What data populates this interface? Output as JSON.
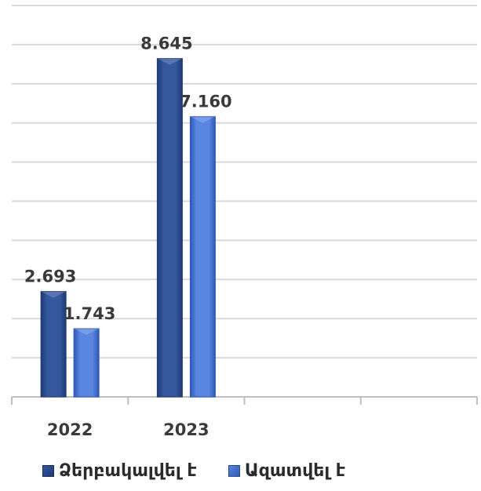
{
  "chart_data": {
    "type": "bar",
    "categories": [
      "2022",
      "2023",
      "",
      ""
    ],
    "series": [
      {
        "name": "Ձերբակալվել է",
        "values": [
          2.693,
          8.645,
          null,
          null
        ],
        "labels": [
          "2.693",
          "8.645",
          "",
          ""
        ],
        "color": "#1e3a73",
        "highlight": "#35579e"
      },
      {
        "name": "Ազատվել է",
        "values": [
          1.743,
          7.16,
          null,
          null
        ],
        "labels": [
          "1.743",
          "7.160",
          "",
          ""
        ],
        "color": "#2f58b8",
        "highlight": "#5a85e0"
      }
    ],
    "ylim": [
      0,
      10
    ],
    "ytick_step": 1,
    "grid": true,
    "legend_position": "bottom-left",
    "title": "",
    "xlabel": "",
    "ylabel": ""
  }
}
